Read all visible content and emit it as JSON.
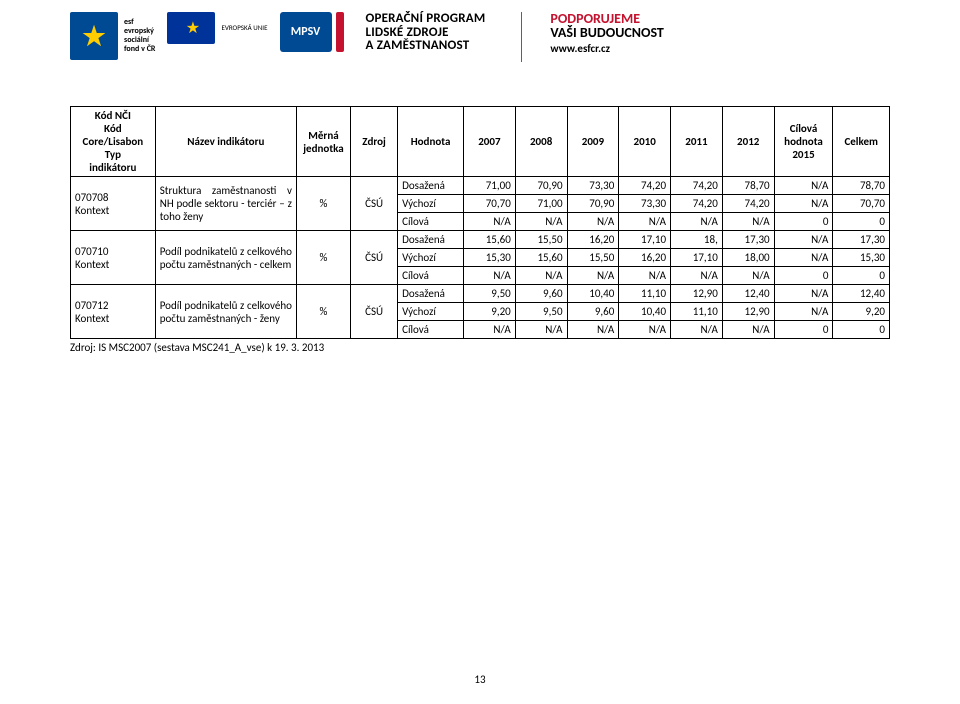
{
  "header": {
    "esf_acronym": "esf",
    "esf_lines": [
      "evropský",
      "sociální",
      "fond v ČR"
    ],
    "eu_line1": "EVROPSKÁ UNIE",
    "eu_star": "★",
    "mpsv_label": "MPSV",
    "op_line1": "OPERAČNÍ PROGRAM",
    "op_line2": "LIDSKÉ ZDROJE",
    "op_line3": "A ZAMĚSTNANOST",
    "support_line1": "PODPORUJEME",
    "support_line2": "VAŠI BUDOUCNOST",
    "support_url": "www.esfcr.cz"
  },
  "table": {
    "columns": {
      "code": "Kód NČI\nKód\nCore/Lisabon\nTyp\nindikátoru",
      "name": "Název indikátoru",
      "unit": "Měrná\njednotka",
      "source": "Zdroj",
      "value_kind": "Hodnota",
      "y2007": "2007",
      "y2008": "2008",
      "y2009": "2009",
      "y2010": "2010",
      "y2011": "2011",
      "y2012": "2012",
      "target": "Cílová\nhodnota\n2015",
      "total": "Celkem"
    },
    "groups": [
      {
        "code": "070708\nKontext",
        "name": "Struktura zaměstnanosti v NH podle sektoru - terciér –\nz toho ženy",
        "unit": "%",
        "source": "ČSÚ",
        "rows": [
          {
            "kind": "Dosažená",
            "y2007": "71,00",
            "y2008": "70,90",
            "y2009": "73,30",
            "y2010": "74,20",
            "y2011": "74,20",
            "y2012": "78,70",
            "target": "N/A",
            "total": "78,70"
          },
          {
            "kind": "Výchozí",
            "y2007": "70,70",
            "y2008": "71,00",
            "y2009": "70,90",
            "y2010": "73,30",
            "y2011": "74,20",
            "y2012": "74,20",
            "target": "N/A",
            "total": "70,70"
          },
          {
            "kind": "Cílová",
            "y2007": "N/A",
            "y2008": "N/A",
            "y2009": "N/A",
            "y2010": "N/A",
            "y2011": "N/A",
            "y2012": "N/A",
            "target": "0",
            "total": "0"
          }
        ]
      },
      {
        "code": "070710\nKontext",
        "name": "Podíl podnikatelů z celkového počtu zaměstnaných - celkem",
        "unit": "%",
        "source": "ČSÚ",
        "rows": [
          {
            "kind": "Dosažená",
            "y2007": "15,60",
            "y2008": "15,50",
            "y2009": "16,20",
            "y2010": "17,10",
            "y2011": "18,",
            "y2012": "17,30",
            "target": "N/A",
            "total": "17,30"
          },
          {
            "kind": "Výchozí",
            "y2007": "15,30",
            "y2008": "15,60",
            "y2009": "15,50",
            "y2010": "16,20",
            "y2011": "17,10",
            "y2012": "18,00",
            "target": "N/A",
            "total": "15,30"
          },
          {
            "kind": "Cílová",
            "y2007": "N/A",
            "y2008": "N/A",
            "y2009": "N/A",
            "y2010": "N/A",
            "y2011": "N/A",
            "y2012": "N/A",
            "target": "0",
            "total": "0"
          }
        ]
      },
      {
        "code": "070712\nKontext",
        "name": "Podíl podnikatelů z celkového počtu zaměstnaných - ženy",
        "unit": "%",
        "source": "ČSÚ",
        "rows": [
          {
            "kind": "Dosažená",
            "y2007": "9,50",
            "y2008": "9,60",
            "y2009": "10,40",
            "y2010": "11,10",
            "y2011": "12,90",
            "y2012": "12,40",
            "target": "N/A",
            "total": "12,40"
          },
          {
            "kind": "Výchozí",
            "y2007": "9,20",
            "y2008": "9,50",
            "y2009": "9,60",
            "y2010": "10,40",
            "y2011": "11,10",
            "y2012": "12,90",
            "target": "N/A",
            "total": "9,20"
          },
          {
            "kind": "Cílová",
            "y2007": "N/A",
            "y2008": "N/A",
            "y2009": "N/A",
            "y2010": "N/A",
            "y2011": "N/A",
            "y2012": "N/A",
            "target": "0",
            "total": "0"
          }
        ]
      }
    ]
  },
  "source_note": "Zdroj: IS MSC2007 (sestava MSC241_A_vse) k 19. 3. 2013",
  "page_number": "13"
}
